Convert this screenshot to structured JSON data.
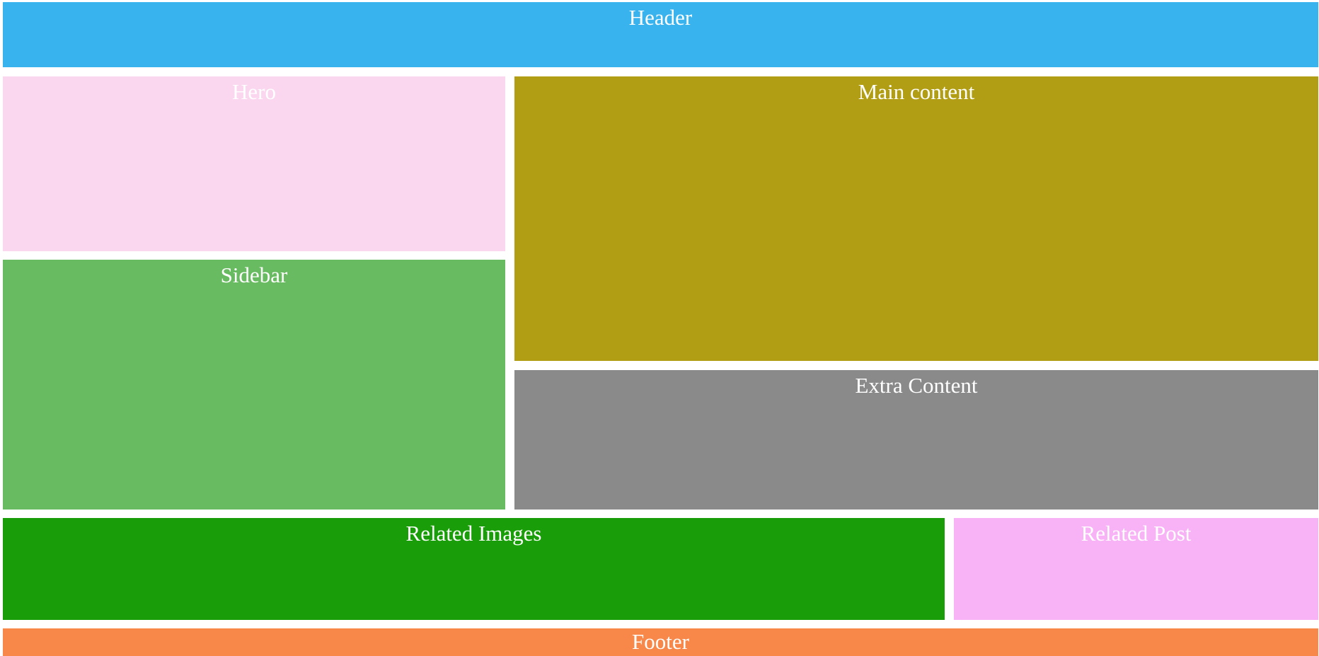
{
  "header": {
    "label": "Header",
    "color": "#38b3ee"
  },
  "hero": {
    "label": "Hero",
    "color": "#fad7ef"
  },
  "main_content": {
    "label": "Main content",
    "color": "#b19e14"
  },
  "sidebar": {
    "label": "Sidebar",
    "color": "#68bb60"
  },
  "extra_content": {
    "label": "Extra Content",
    "color": "#8a8a8a"
  },
  "related_images": {
    "label": "Related Images",
    "color": "#199e09"
  },
  "related_post": {
    "label": "Related Post",
    "color": "#f8b2f6"
  },
  "footer": {
    "label": "Footer",
    "color": "#f8884a"
  }
}
